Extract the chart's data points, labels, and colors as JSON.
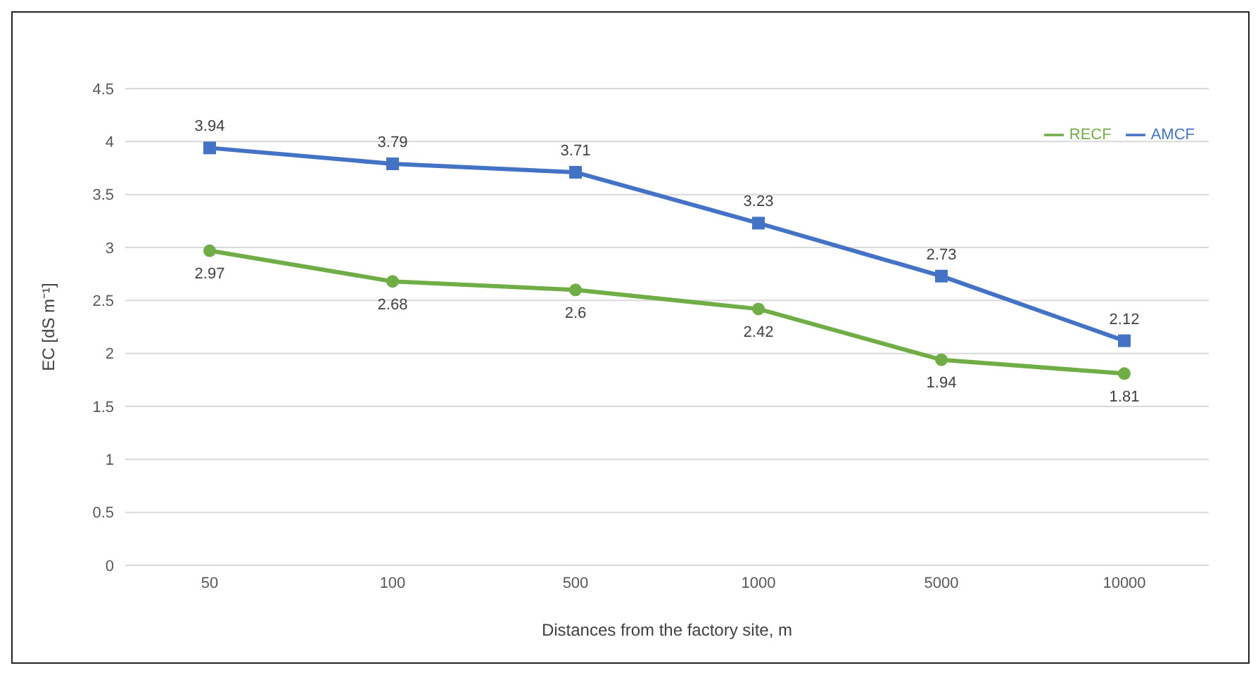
{
  "chart_data": {
    "type": "line",
    "xlabel": "Distances from the factory site, m",
    "ylabel": "EC [dS m⁻¹]",
    "categories": [
      "50",
      "100",
      "500",
      "1000",
      "5000",
      "10000"
    ],
    "series": [
      {
        "name": "RECF",
        "color": "#70ad47",
        "marker": "circle",
        "values": [
          2.97,
          2.68,
          2.6,
          2.42,
          1.94,
          1.81
        ]
      },
      {
        "name": "AMCF",
        "color": "#4472c4",
        "marker": "square",
        "values": [
          3.94,
          3.79,
          3.71,
          3.23,
          2.73,
          2.12
        ]
      }
    ],
    "ylim": [
      0,
      4.5
    ],
    "yticks": [
      0,
      0.5,
      1,
      1.5,
      2,
      2.5,
      3,
      3.5,
      4,
      4.5
    ],
    "grid": "y",
    "legend": "top right",
    "data_labels": true
  }
}
